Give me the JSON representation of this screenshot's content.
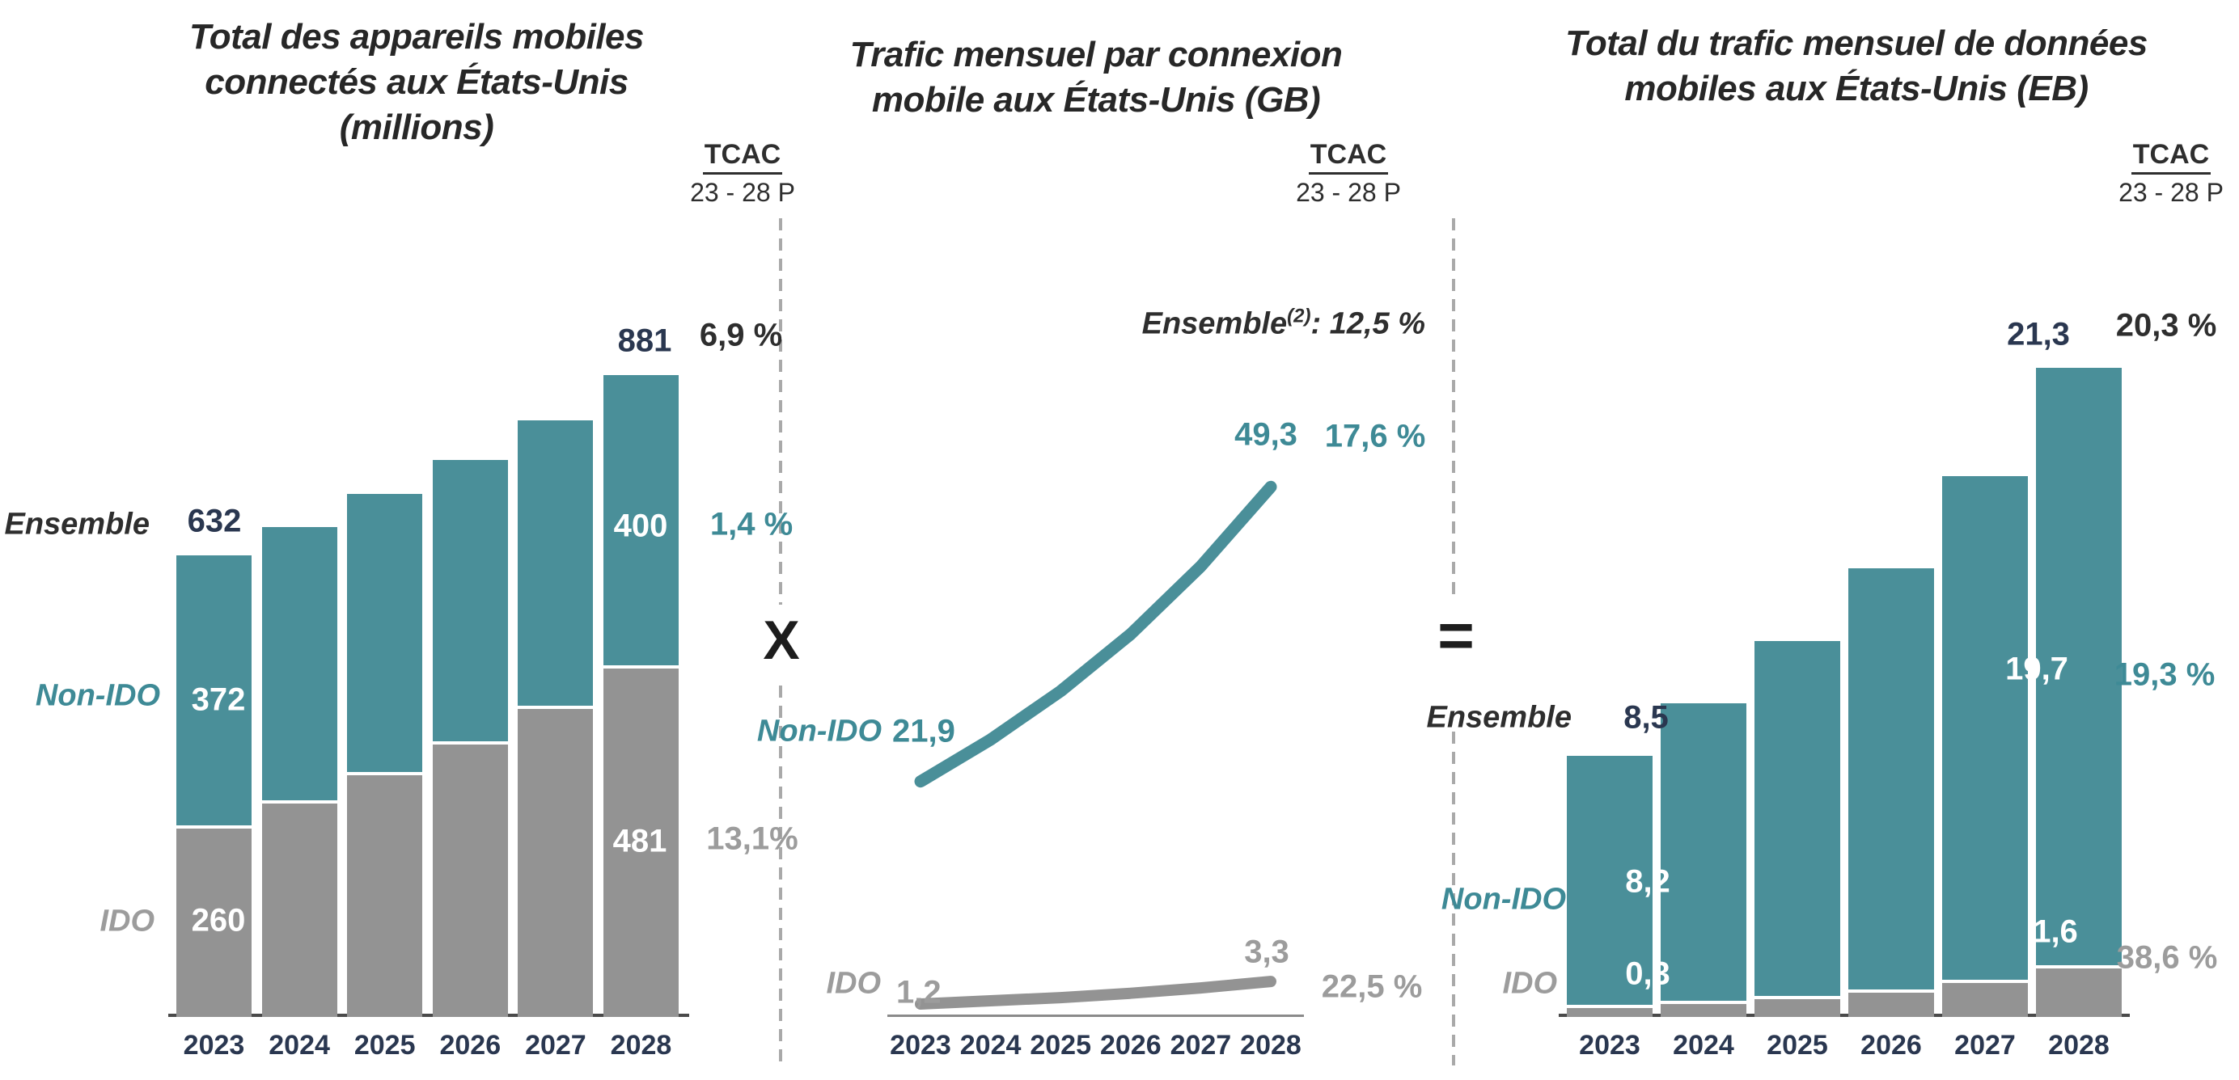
{
  "colors": {
    "teal": "#4A8F99",
    "teal_text": "#3E8A96",
    "gray": "#939393",
    "gray_text": "#9C9C9C",
    "dark": "#2B2B2B",
    "navy": "#2A3750",
    "white": "#FFFFFF",
    "separator": "#A9A9A9"
  },
  "operators": {
    "multiply": "X",
    "equals": "="
  },
  "chart_data": [
    {
      "id": "devices",
      "type": "bar",
      "subtype": "stacked",
      "title": "Total des appareils mobiles\nconnectés aux États-Unis\n(millions)",
      "tcac_label": "TCAC",
      "tcac_period": "23 - 28 P",
      "categories": [
        "2023",
        "2024",
        "2025",
        "2026",
        "2027",
        "2028"
      ],
      "ylim": [
        0,
        900
      ],
      "series": [
        {
          "name": "IDO",
          "color_key": "gray",
          "values": [
            260,
            294,
            333,
            376,
            425,
            481
          ],
          "first_label": "260",
          "last_label": "481",
          "cagr": "13,1%"
        },
        {
          "name": "Non-IDO",
          "color_key": "teal",
          "values": [
            372,
            377,
            383,
            388,
            394,
            400
          ],
          "first_label": "372",
          "last_label": "400",
          "cagr": "1,4 %"
        }
      ],
      "total": {
        "name": "Ensemble",
        "first_label": "632",
        "last_label": "881",
        "cagr": "6,9 %"
      }
    },
    {
      "id": "traffic-per-connection",
      "type": "line",
      "title": "Trafic mensuel par connexion\nmobile aux États-Unis (GB)",
      "tcac_label": "TCAC",
      "tcac_period": "23 - 28 P",
      "categories": [
        "2023",
        "2024",
        "2025",
        "2026",
        "2027",
        "2028"
      ],
      "ylim": [
        0,
        55
      ],
      "series": [
        {
          "name": "Non-IDO",
          "color_key": "teal",
          "values": [
            21.9,
            25.8,
            30.3,
            35.6,
            41.9,
            49.3
          ],
          "first_label": "21,9",
          "last_label": "49,3",
          "cagr": "17,6 %"
        },
        {
          "name": "IDO",
          "color_key": "gray",
          "values": [
            1.2,
            1.5,
            1.8,
            2.2,
            2.7,
            3.3
          ],
          "first_label": "1,2",
          "last_label": "3,3",
          "cagr": "22,5 %"
        }
      ],
      "ensemble_note": {
        "name": "Ensemble",
        "sup": "(2)",
        "rest": ": 12,5 %"
      }
    },
    {
      "id": "total-traffic",
      "type": "bar",
      "subtype": "stacked",
      "title": "Total du trafic mensuel de données\nmobiles aux États-Unis (EB)",
      "tcac_label": "TCAC",
      "tcac_period": "23 - 28 P",
      "categories": [
        "2023",
        "2024",
        "2025",
        "2026",
        "2027",
        "2028"
      ],
      "ylim": [
        0,
        22
      ],
      "series": [
        {
          "name": "IDO",
          "color_key": "gray",
          "values": [
            0.3,
            0.42,
            0.58,
            0.8,
            1.11,
            1.6
          ],
          "first_label": "0,3",
          "last_label": "1,6",
          "cagr": "38,6 %"
        },
        {
          "name": "Non-IDO",
          "color_key": "teal",
          "values": [
            8.2,
            9.8,
            11.7,
            13.9,
            16.6,
            19.7
          ],
          "first_label": "8,2",
          "last_label": "19,7",
          "cagr": "19,3 %"
        }
      ],
      "total": {
        "name": "Ensemble",
        "first_label": "8,5",
        "last_label": "21,3",
        "cagr": "20,3 %"
      }
    }
  ]
}
